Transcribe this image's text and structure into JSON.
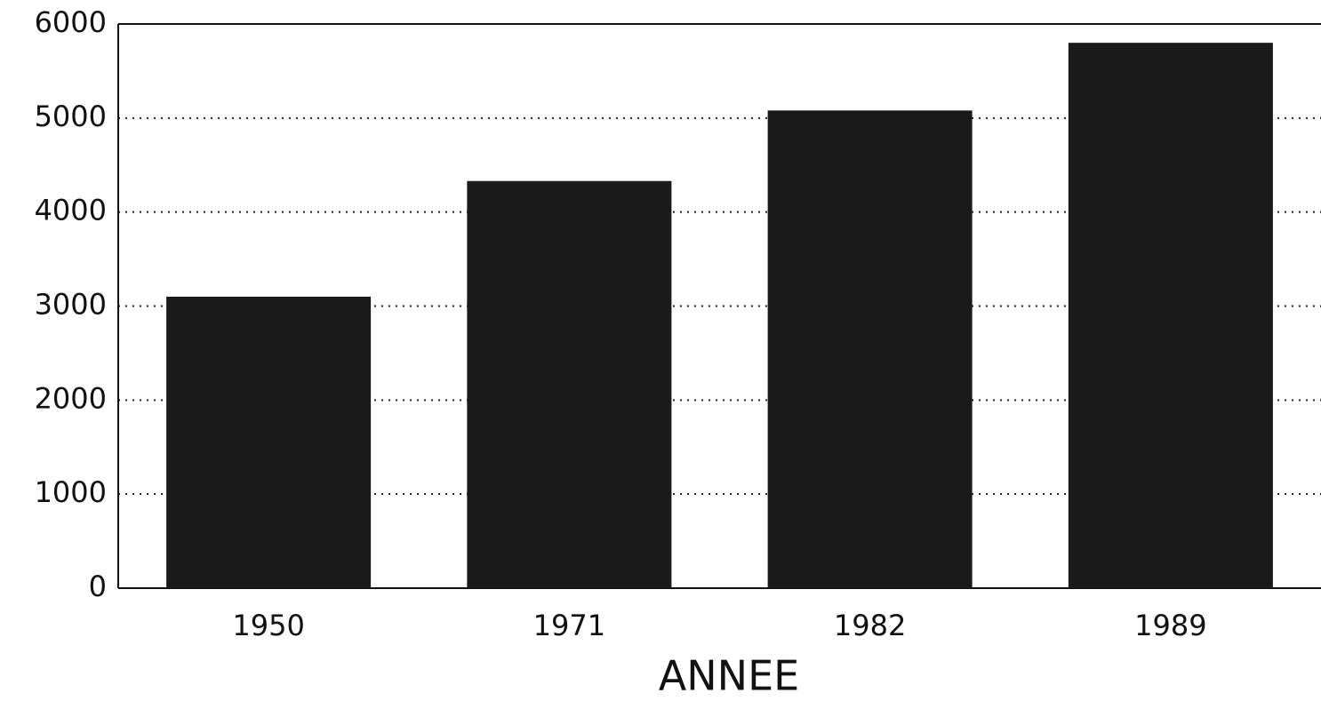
{
  "chart_data": {
    "type": "bar",
    "x_label": "ANNEE",
    "categories": [
      "1950",
      "1971",
      "1982",
      "1989"
    ],
    "values": [
      3100,
      4330,
      5080,
      5800
    ],
    "color": "#1a1a1a",
    "ylim": [
      0,
      6000
    ],
    "yticks": [
      0,
      1000,
      2000,
      3000,
      4000,
      5000,
      6000
    ],
    "grid": true
  }
}
